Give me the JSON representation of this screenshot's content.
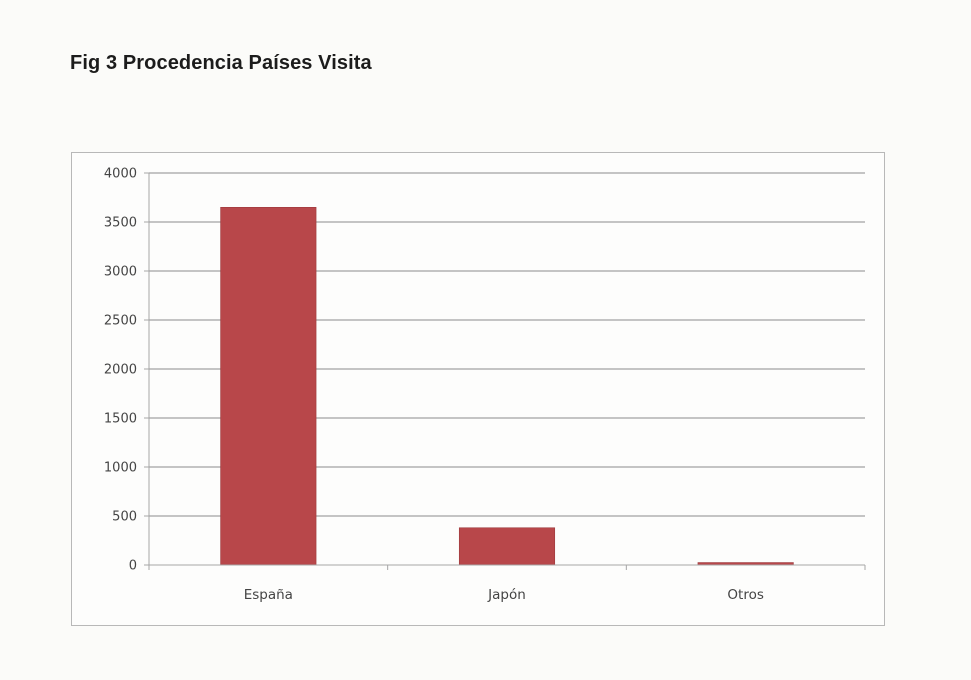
{
  "page": {
    "title": "Fig 3 Procedencia Países Visita"
  },
  "colors": {
    "bar": "#b8474a",
    "bar_edge": "#9c3a3c",
    "grid": "#8c8c8c",
    "axis": "#a6a6a6"
  },
  "chart_data": {
    "type": "bar",
    "title": "",
    "xlabel": "",
    "ylabel": "",
    "categories": [
      "España",
      "Japón",
      "Otros"
    ],
    "values": [
      3650,
      380,
      25
    ],
    "ylim": [
      0,
      4000
    ],
    "yticks": [
      0,
      500,
      1000,
      1500,
      2000,
      2500,
      3000,
      3500,
      4000
    ],
    "grid": true,
    "legend": "none"
  }
}
